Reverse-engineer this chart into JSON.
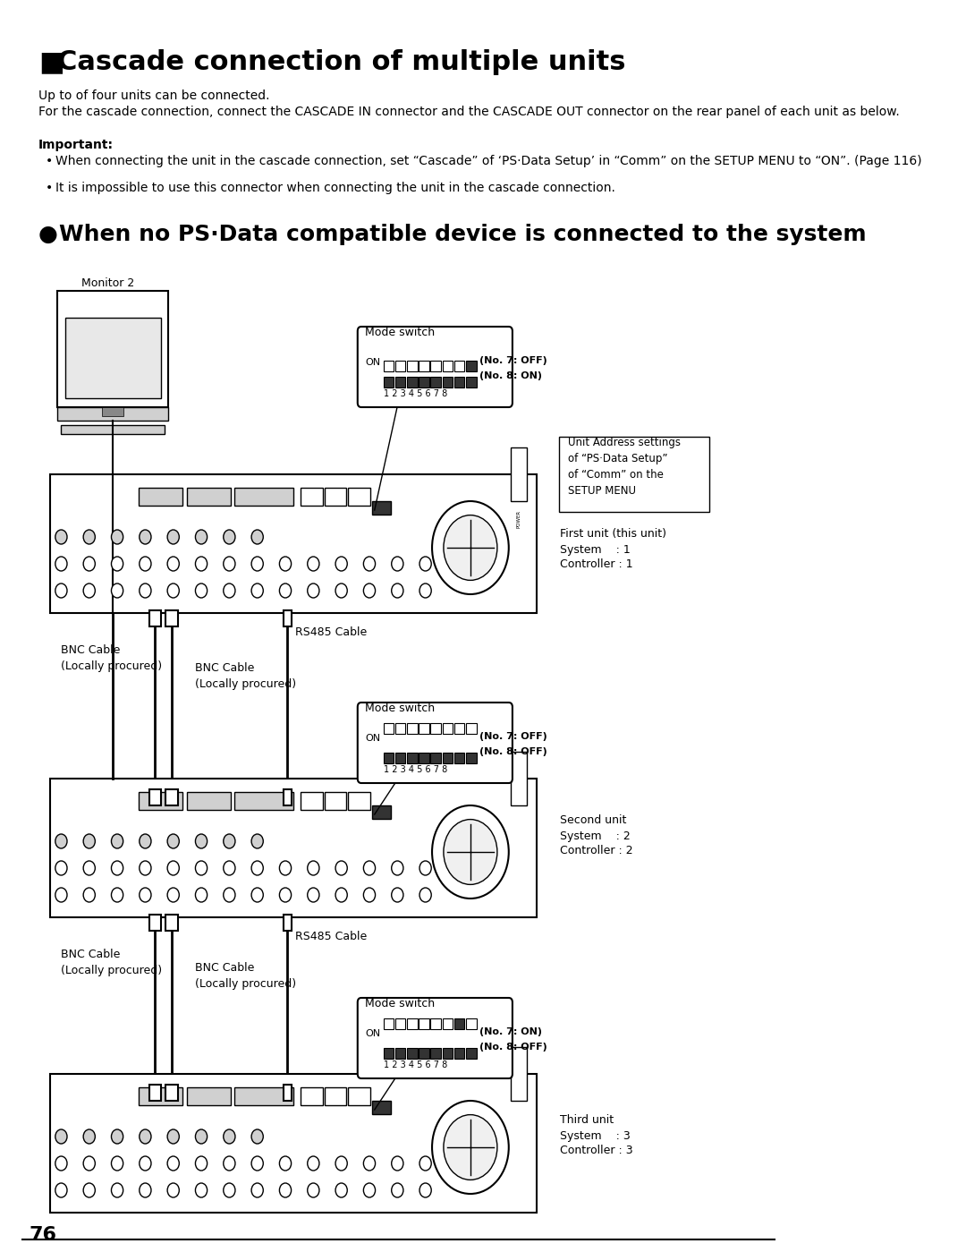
{
  "page_number": "76",
  "title": "Cascade connection of multiple units",
  "section_title": "When no PS·Data compatible device is connected to the system",
  "body_text_1": "Up to of four units can be connected.",
  "body_text_2": "For the cascade connection, connect the CASCADE IN connector and the CASCADE OUT connector on the rear panel of each unit as below.",
  "important_label": "Important:",
  "bullet1": "When connecting the unit in the cascade connection, set “Cascade” of ‘PS·Data Setup’ in “Comm” on the SETUP MENU to “ON”. (Page 116)",
  "bullet2": "It is impossible to use this connector when connecting the unit in the cascade connection.",
  "monitor_label": "Monitor 2",
  "mode_switch_label": "Mode switch",
  "mode_sw1_line1": "(No. 7: OFF)",
  "mode_sw1_line2": "(No. 8: ON)",
  "mode_sw2_line1": "(No. 7: OFF)",
  "mode_sw2_line2": "(No. 8: OFF)",
  "mode_sw3_line1": "(No. 7: ON)",
  "mode_sw3_line2": "(No. 8: OFF)",
  "unit_addr_box": "Unit Address settings\nof “PS·Data Setup”\nof “Comm” on the\nSETUP MENU",
  "unit1_label": "First unit (this unit)",
  "unit1_system": "System    : 1",
  "unit1_ctrl": "Controller : 1",
  "unit2_label": "Second unit",
  "unit2_system": "System    : 2",
  "unit2_ctrl": "Controller : 2",
  "unit3_label": "Third unit",
  "unit3_system": "System    : 3",
  "unit3_ctrl": "Controller : 3",
  "bnc_cable1": "BNC Cable\n(Locally procured)",
  "bnc_cable2": "BNC Cable\n(Locally procured)",
  "bnc_cable3": "BNC Cable\n(Locally procured)",
  "rs485_cable1": "RS485 Cable",
  "rs485_cable2": "RS485 Cable",
  "on_label": "ON",
  "sw_numbers": "1 2 3 4 5 6 7 8",
  "bg_color": "#ffffff",
  "text_color": "#000000"
}
